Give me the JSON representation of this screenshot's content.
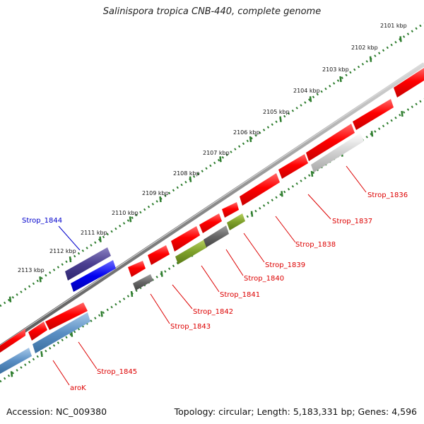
{
  "title": "Salinispora tropica CNB-440, complete genome",
  "footer": {
    "accession": "Accession: NC_009380",
    "summary": "Topology: circular; Length: 5,183,331 bp; Genes: 4,596"
  },
  "colors": {
    "backbone": "#8a8a8a",
    "ruler": "#2e7d2e",
    "label_red": "#dd0000",
    "label_blue": "#0000cc"
  },
  "ruler_labels": [
    "2101 kbp",
    "2102 kbp",
    "2103 kbp",
    "2104 kbp",
    "2105 kbp",
    "2106 kbp",
    "2107 kbp",
    "2108 kbp",
    "2109 kbp",
    "2110 kbp",
    "2111 kbp",
    "2112 kbp",
    "2113 kbp"
  ],
  "gene_labels": [
    {
      "text": "Strop_1836",
      "color": "#dd0000"
    },
    {
      "text": "Strop_1837",
      "color": "#dd0000"
    },
    {
      "text": "Strop_1838",
      "color": "#dd0000"
    },
    {
      "text": "Strop_1839",
      "color": "#dd0000"
    },
    {
      "text": "Strop_1840",
      "color": "#dd0000"
    },
    {
      "text": "Strop_1841",
      "color": "#dd0000"
    },
    {
      "text": "Strop_1842",
      "color": "#dd0000"
    },
    {
      "text": "Strop_1843",
      "color": "#dd0000"
    },
    {
      "text": "Strop_1844",
      "color": "#0000cc"
    },
    {
      "text": "Strop_1845",
      "color": "#dd0000"
    },
    {
      "text": "aroK",
      "color": "#dd0000"
    }
  ]
}
